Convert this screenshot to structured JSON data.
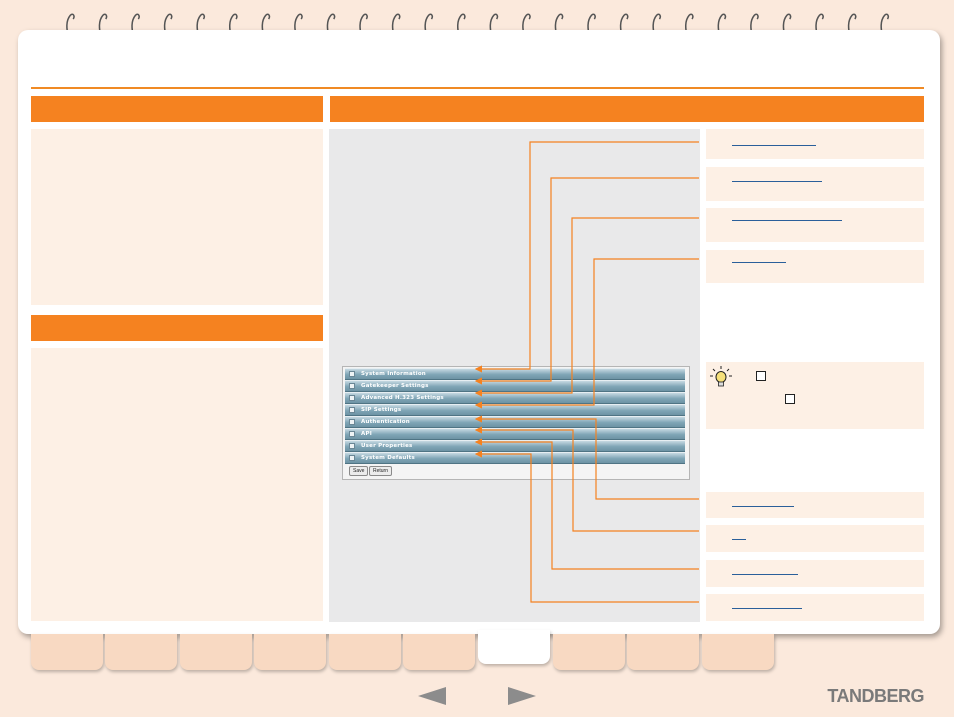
{
  "colors": {
    "accent": "#f58220",
    "panel": "#fdf0e5",
    "link": "#2a5f9a",
    "background": "#fbe9dc"
  },
  "screenshot": {
    "sections": [
      "System Information",
      "Gatekeeper Settings",
      "Advanced H.323 Settings",
      "SIP Settings",
      "Authentication",
      "API",
      "User Properties",
      "System Defaults"
    ],
    "buttons": {
      "save": "Save",
      "return": "Return"
    }
  },
  "icons": {
    "tip": "lightbulb-icon",
    "prev": "left-arrow-icon",
    "next": "right-arrow-icon"
  },
  "brand": "TANDBERG"
}
